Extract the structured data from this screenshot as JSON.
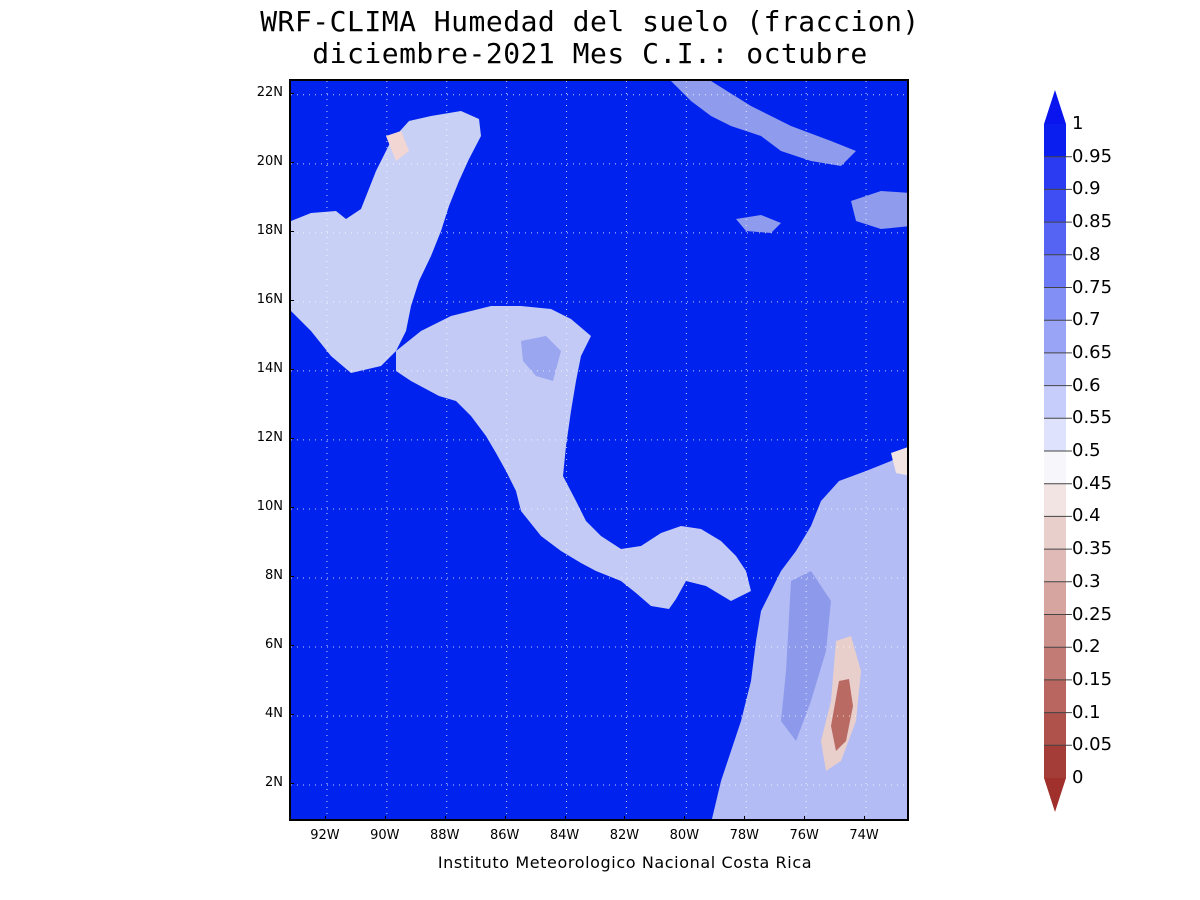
{
  "title": {
    "line1": "WRF-CLIMA Humedad del suelo (fraccion)",
    "line2": "diciembre-2021 Mes C.I.: octubre"
  },
  "credit": "Instituto Meteorologico Nacional Costa Rica",
  "map": {
    "lat_labels": [
      "22N",
      "20N",
      "18N",
      "16N",
      "14N",
      "12N",
      "10N",
      "8N",
      "6N",
      "4N",
      "2N"
    ],
    "lon_labels": [
      "92W",
      "90W",
      "88W",
      "86W",
      "84W",
      "82W",
      "80W",
      "78W",
      "76W",
      "74W"
    ],
    "ocean_value": "1",
    "colors": {
      "ocean": "#0022ee",
      "land_wet": "#c9d0f6",
      "land_mid": "#8f9cee",
      "land_dry": "#f2d6d3",
      "land_very_dry": "#b96a63"
    }
  },
  "colorbar": {
    "labels": [
      "1",
      "0.95",
      "0.9",
      "0.85",
      "0.8",
      "0.75",
      "0.7",
      "0.65",
      "0.6",
      "0.55",
      "0.5",
      "0.45",
      "0.4",
      "0.35",
      "0.3",
      "0.25",
      "0.2",
      "0.15",
      "0.1",
      "0.05",
      "0"
    ],
    "colors": [
      "#0a1ef0",
      "#2a3bf1",
      "#3f4ef2",
      "#5564f3",
      "#6b79f4",
      "#8290f5",
      "#99a4f6",
      "#b0b9f8",
      "#c7cdfa",
      "#dfe2fc",
      "#f7f6fb",
      "#f1e4e2",
      "#e8cfcc",
      "#dfbab6",
      "#d6a5a0",
      "#cc908a",
      "#c27b75",
      "#b8665f",
      "#ae524b",
      "#a43d37"
    ],
    "extend": "both"
  }
}
